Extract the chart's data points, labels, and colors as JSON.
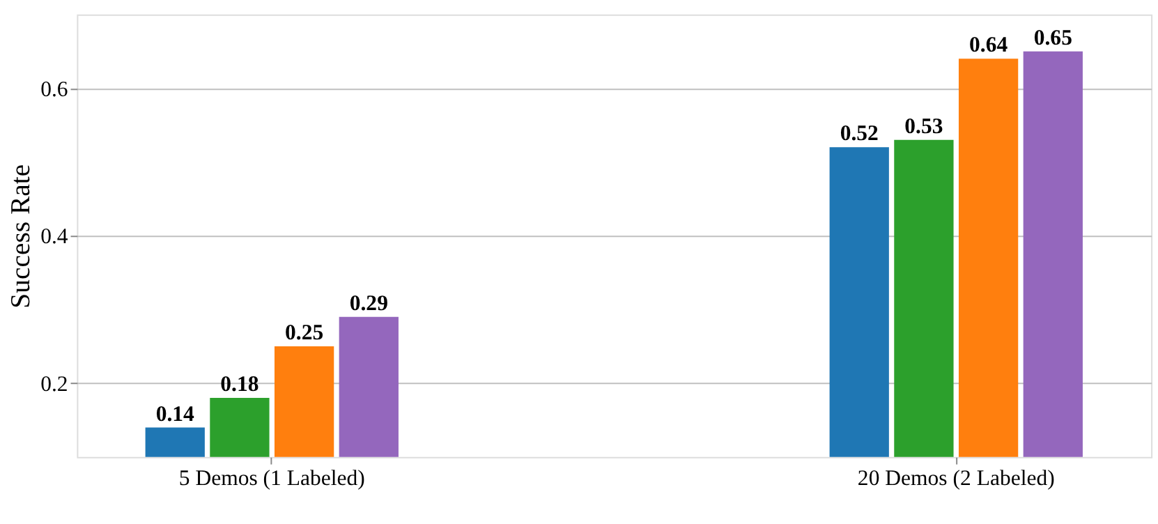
{
  "chart_data": {
    "type": "bar",
    "ylabel": "Success Rate",
    "categories": [
      "5 Demos (1 Labeled)",
      "20 Demos (2 Labeled)"
    ],
    "series": [
      {
        "color": "#1f77b4",
        "values": [
          0.14,
          0.52
        ]
      },
      {
        "color": "#2ca02c",
        "values": [
          0.18,
          0.53
        ]
      },
      {
        "color": "#ff7f0e",
        "values": [
          0.25,
          0.64
        ]
      },
      {
        "color": "#9467bd",
        "values": [
          0.29,
          0.65
        ]
      }
    ],
    "ylim": [
      0.1,
      0.7
    ],
    "yticks": [
      0.2,
      0.4,
      0.6
    ],
    "grid": "y",
    "data_labels": true,
    "legend": false
  }
}
